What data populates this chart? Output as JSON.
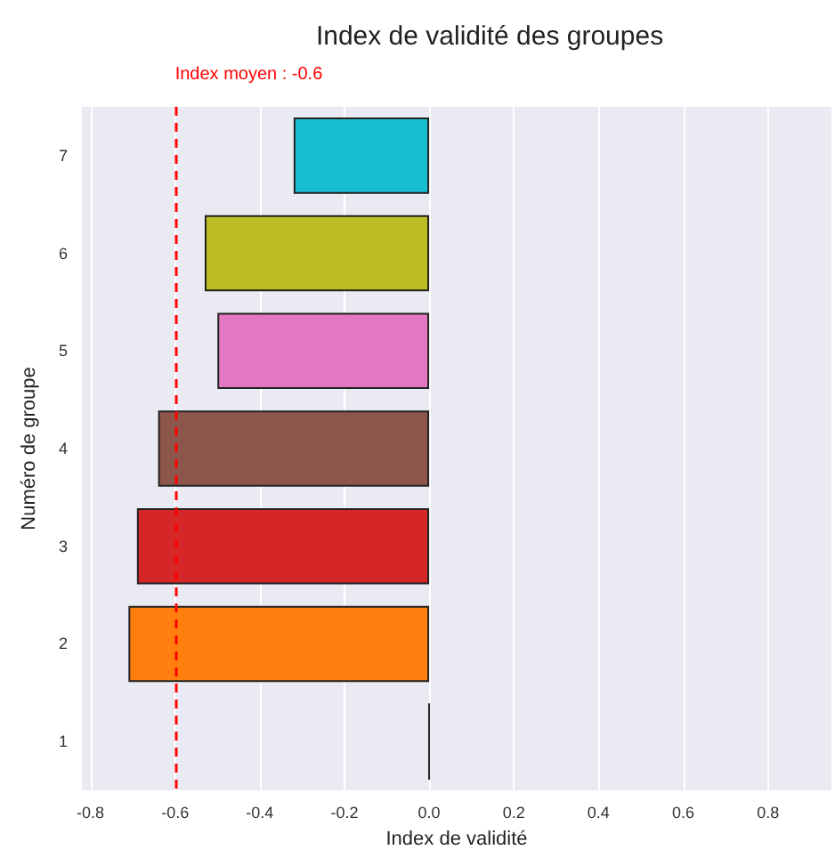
{
  "chart_data": {
    "type": "bar",
    "orientation": "horizontal",
    "title": "Index de validité des groupes",
    "xlabel": "Index de validité",
    "ylabel": "Numéro de groupe",
    "categories": [
      "7",
      "6",
      "5",
      "4",
      "3",
      "2",
      "1"
    ],
    "values": [
      -0.32,
      -0.53,
      -0.5,
      -0.64,
      -0.69,
      -0.71,
      0
    ],
    "colors": [
      "#17becf",
      "#bcbd22",
      "#e377c2",
      "#8c564b",
      "#d62728",
      "#ff7f0e",
      "#222222"
    ],
    "xlim": [
      -0.82,
      0.95
    ],
    "xticks": [
      -0.8,
      -0.6,
      -0.4,
      -0.2,
      {
        "value": 0,
        "label": "0.0"
      },
      0.2,
      0.4,
      0.6,
      0.8
    ],
    "ref_lines": [
      {
        "axis": "x",
        "value": -0.6,
        "label": "Index moyen : -0.6",
        "color": "#ff0000",
        "line_style": "dashed"
      }
    ],
    "grid": "x"
  }
}
